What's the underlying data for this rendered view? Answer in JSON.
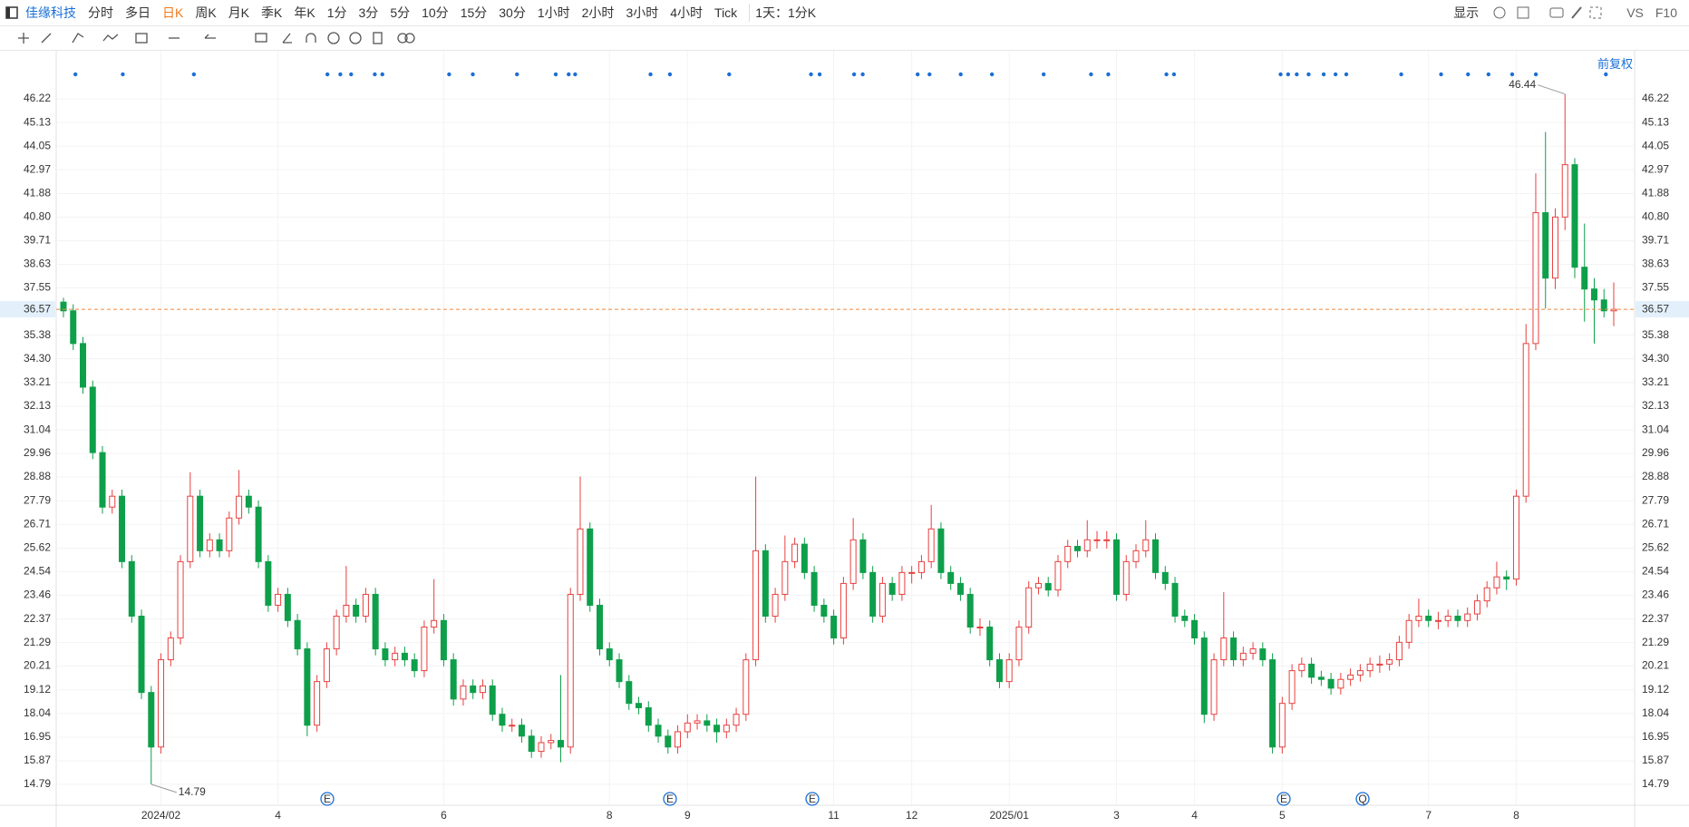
{
  "toolbar": {
    "stock": "佳缘科技",
    "periods": [
      "分时",
      "多日",
      "日K",
      "周K",
      "月K",
      "季K",
      "年K",
      "1分",
      "3分",
      "5分",
      "10分",
      "15分",
      "30分",
      "1小时",
      "2小时",
      "3小时",
      "4小时",
      "Tick"
    ],
    "active_period": "日K",
    "interval": "1天：1分K",
    "display": "显示",
    "vs": "VS",
    "f10": "F10",
    "adjust": "前复权"
  },
  "chart_data": {
    "type": "candlestick",
    "categories": [
      null,
      null,
      null,
      null,
      null,
      null,
      null,
      null,
      null,
      null,
      "2024/02",
      null,
      null,
      null,
      null,
      null,
      null,
      null,
      null,
      null,
      null,
      null,
      "4",
      null,
      null,
      null,
      null,
      null,
      null,
      null,
      null,
      null,
      null,
      null,
      null,
      null,
      null,
      null,
      null,
      "6",
      null,
      null,
      null,
      null,
      null,
      null,
      null,
      null,
      null,
      null,
      null,
      null,
      null,
      null,
      null,
      null,
      "8",
      null,
      null,
      null,
      null,
      null,
      null,
      null,
      "9",
      null,
      null,
      null,
      null,
      null,
      null,
      null,
      null,
      null,
      null,
      null,
      null,
      null,
      null,
      "11",
      null,
      null,
      null,
      null,
      null,
      null,
      null,
      "12",
      null,
      null,
      null,
      null,
      null,
      null,
      null,
      null,
      null,
      "2025/01",
      null,
      null,
      null,
      null,
      null,
      null,
      null,
      null,
      null,
      null,
      "3",
      null,
      null,
      null,
      null,
      null,
      null,
      null,
      "4",
      null,
      null,
      null,
      null,
      null,
      null,
      null,
      null,
      "5",
      null,
      null,
      null,
      null,
      null,
      null,
      null,
      null,
      null,
      null,
      null,
      null,
      null,
      null,
      "7",
      null,
      null,
      null,
      null,
      null,
      null,
      null,
      null,
      "8",
      null,
      null,
      null,
      null,
      null,
      null,
      null,
      null,
      null,
      null
    ],
    "open": [
      36.9,
      36.5,
      35.0,
      33.0,
      30.0,
      27.5,
      28.0,
      25.0,
      22.5,
      19.0,
      16.5,
      20.5,
      21.5,
      25.0,
      28.0,
      25.5,
      26.0,
      25.5,
      27.0,
      28.0,
      27.5,
      25.0,
      23.0,
      23.5,
      22.3,
      21.0,
      17.5,
      19.5,
      21.0,
      22.5,
      23.0,
      22.5,
      23.5,
      21.0,
      20.5,
      20.8,
      20.5,
      20.0,
      22.0,
      22.3,
      20.5,
      18.7,
      19.3,
      19.0,
      19.3,
      18.0,
      17.5,
      17.5,
      17.0,
      16.3,
      16.7,
      16.8,
      16.5,
      23.5,
      26.5,
      23.0,
      21.0,
      20.5,
      19.5,
      18.5,
      18.3,
      17.5,
      17.0,
      16.5,
      17.2,
      17.6,
      17.7,
      17.5,
      17.2,
      17.5,
      18.0,
      20.5,
      25.5,
      22.5,
      23.5,
      25.0,
      25.8,
      24.5,
      23.0,
      22.5,
      21.5,
      24.0,
      26.0,
      24.5,
      22.5,
      24.0,
      23.5,
      24.5,
      24.5,
      25.0,
      26.5,
      24.5,
      24.0,
      23.5,
      22.0,
      22.0,
      20.5,
      19.5,
      20.5,
      22.0,
      23.8,
      24.0,
      23.7,
      25.0,
      25.7,
      25.5,
      26.0,
      26.0,
      26.0,
      23.5,
      25.0,
      25.5,
      26.0,
      24.5,
      24.0,
      22.5,
      22.3,
      21.5,
      18.0,
      20.5,
      21.5,
      20.5,
      20.8,
      21.0,
      20.5,
      16.5,
      18.5,
      20.0,
      20.3,
      19.7,
      19.6,
      19.2,
      19.6,
      19.8,
      20.0,
      20.3,
      20.3,
      20.5,
      21.3,
      22.3,
      22.5,
      22.3,
      22.3,
      22.5,
      22.3,
      22.6,
      23.2,
      23.8,
      24.3,
      24.2,
      28.0,
      35.0,
      41.0,
      38.0,
      40.8,
      43.2,
      38.5,
      37.5,
      37.0,
      36.5
    ],
    "high": [
      37.1,
      36.8,
      35.3,
      33.3,
      30.3,
      28.3,
      28.3,
      25.3,
      22.8,
      19.3,
      20.8,
      21.8,
      25.3,
      29.1,
      28.3,
      26.3,
      26.3,
      27.3,
      29.2,
      28.3,
      27.8,
      25.3,
      23.8,
      23.8,
      22.6,
      21.3,
      19.8,
      21.3,
      22.8,
      24.8,
      23.3,
      23.8,
      23.8,
      21.3,
      21.1,
      21.1,
      20.8,
      22.3,
      24.2,
      22.6,
      20.8,
      19.6,
      19.6,
      19.6,
      19.6,
      18.3,
      17.8,
      17.8,
      17.3,
      17.0,
      17.1,
      19.8,
      23.8,
      28.9,
      26.8,
      23.3,
      21.3,
      20.8,
      19.8,
      18.8,
      18.6,
      17.8,
      17.3,
      17.5,
      18.0,
      18.0,
      18.0,
      17.8,
      17.8,
      18.3,
      20.8,
      28.9,
      25.8,
      23.8,
      26.2,
      26.1,
      26.1,
      24.8,
      23.3,
      22.8,
      24.3,
      27.0,
      26.3,
      24.8,
      24.3,
      24.3,
      24.8,
      24.8,
      25.3,
      27.6,
      26.8,
      24.8,
      24.3,
      23.8,
      22.4,
      22.3,
      20.8,
      20.8,
      22.3,
      24.1,
      24.3,
      24.3,
      25.3,
      26.0,
      26.0,
      26.9,
      26.4,
      26.4,
      26.3,
      25.3,
      25.8,
      26.9,
      26.3,
      24.8,
      24.3,
      22.8,
      22.6,
      21.8,
      20.8,
      23.6,
      21.8,
      21.1,
      21.3,
      21.3,
      20.8,
      18.8,
      20.3,
      20.6,
      20.6,
      20.0,
      19.9,
      19.9,
      20.1,
      20.3,
      20.6,
      20.7,
      20.8,
      21.6,
      22.6,
      23.3,
      22.8,
      22.7,
      22.8,
      22.8,
      22.9,
      23.5,
      24.1,
      25.0,
      24.6,
      28.3,
      35.9,
      42.8,
      44.7,
      41.2,
      46.44,
      43.5,
      40.5,
      38.0,
      37.5,
      37.8
    ],
    "low": [
      36.2,
      34.7,
      32.7,
      29.7,
      27.2,
      27.2,
      24.7,
      22.2,
      18.7,
      14.79,
      16.2,
      20.2,
      21.2,
      24.7,
      25.2,
      25.2,
      25.2,
      25.2,
      26.7,
      27.2,
      24.7,
      22.7,
      22.7,
      22.0,
      20.7,
      17.0,
      17.2,
      19.2,
      20.7,
      22.2,
      22.2,
      22.2,
      20.7,
      20.2,
      20.2,
      20.2,
      19.7,
      19.7,
      21.7,
      20.2,
      18.4,
      18.4,
      18.7,
      18.7,
      17.7,
      17.2,
      17.2,
      16.7,
      16.0,
      16.0,
      16.4,
      15.8,
      16.2,
      23.2,
      22.7,
      20.7,
      20.2,
      19.2,
      18.2,
      18.0,
      17.2,
      16.7,
      16.2,
      16.2,
      16.9,
      17.3,
      17.2,
      16.7,
      16.9,
      17.2,
      17.7,
      20.2,
      22.2,
      22.2,
      23.2,
      24.7,
      24.2,
      22.7,
      22.2,
      21.2,
      21.2,
      23.7,
      24.2,
      22.2,
      22.2,
      23.2,
      23.2,
      24.0,
      24.2,
      24.7,
      24.2,
      23.7,
      23.2,
      21.7,
      21.6,
      20.2,
      19.2,
      19.2,
      20.2,
      21.7,
      23.5,
      23.4,
      23.4,
      24.7,
      25.2,
      25.2,
      25.6,
      25.6,
      23.2,
      23.2,
      24.7,
      25.2,
      24.2,
      23.7,
      22.2,
      22.0,
      21.2,
      17.6,
      17.7,
      20.2,
      20.2,
      20.2,
      20.5,
      20.2,
      16.2,
      16.2,
      18.2,
      19.7,
      19.4,
      19.3,
      18.9,
      18.9,
      19.3,
      19.5,
      19.7,
      19.9,
      20.0,
      20.2,
      21.0,
      22.0,
      22.0,
      21.9,
      22.0,
      22.0,
      22.0,
      22.3,
      22.9,
      23.5,
      23.7,
      23.9,
      27.7,
      34.7,
      36.6,
      37.5,
      40.2,
      38.0,
      36.0,
      35.0,
      36.2,
      35.8
    ],
    "close": [
      36.5,
      35.0,
      33.0,
      30.0,
      27.5,
      28.0,
      25.0,
      22.5,
      19.0,
      16.5,
      20.5,
      21.5,
      25.0,
      28.0,
      25.5,
      26.0,
      25.5,
      27.0,
      28.0,
      27.5,
      25.0,
      23.0,
      23.5,
      22.3,
      21.0,
      17.5,
      19.5,
      21.0,
      22.5,
      23.0,
      22.5,
      23.5,
      21.0,
      20.5,
      20.8,
      20.5,
      20.0,
      22.0,
      22.3,
      20.5,
      18.7,
      19.3,
      19.0,
      19.3,
      18.0,
      17.5,
      17.5,
      17.0,
      16.3,
      16.7,
      16.8,
      16.5,
      23.5,
      26.5,
      23.0,
      21.0,
      20.5,
      19.5,
      18.5,
      18.3,
      17.5,
      17.0,
      16.5,
      17.2,
      17.6,
      17.7,
      17.5,
      17.2,
      17.5,
      18.0,
      20.5,
      25.5,
      22.5,
      23.5,
      25.0,
      25.8,
      24.5,
      23.0,
      22.5,
      21.5,
      24.0,
      26.0,
      24.5,
      22.5,
      24.0,
      23.5,
      24.5,
      24.5,
      25.0,
      26.5,
      24.5,
      24.0,
      23.5,
      22.0,
      22.0,
      20.5,
      19.5,
      20.5,
      22.0,
      23.8,
      24.0,
      23.7,
      25.0,
      25.7,
      25.5,
      26.0,
      26.0,
      26.0,
      23.5,
      25.0,
      25.5,
      26.0,
      24.5,
      24.0,
      22.5,
      22.3,
      21.5,
      18.0,
      20.5,
      21.5,
      20.5,
      20.8,
      21.0,
      20.5,
      16.5,
      18.5,
      20.0,
      20.3,
      19.7,
      19.6,
      19.2,
      19.6,
      19.8,
      20.0,
      20.3,
      20.3,
      20.5,
      21.3,
      22.3,
      22.5,
      22.3,
      22.3,
      22.5,
      22.3,
      22.6,
      23.2,
      23.8,
      24.3,
      24.2,
      28.0,
      35.0,
      41.0,
      38.0,
      40.8,
      43.2,
      38.5,
      37.5,
      37.0,
      36.5,
      36.57
    ],
    "up_color": "#e8403f",
    "down_color": "#0e9f4a",
    "last_price": 36.57,
    "last_price_color": "#f0883a",
    "ylim": [
      13.83,
      47.8
    ],
    "yticks": [
      46.22,
      45.13,
      44.05,
      42.97,
      41.88,
      {
        "value": 40.8,
        "label": "40.80"
      },
      39.71,
      38.63,
      37.55,
      35.38,
      {
        "value": 34.3,
        "label": "34.30"
      },
      33.21,
      32.13,
      31.04,
      29.96,
      28.88,
      27.79,
      26.71,
      25.62,
      24.54,
      23.46,
      22.37,
      21.29,
      20.21,
      19.12,
      18.04,
      16.95,
      15.87,
      14.79
    ],
    "grid": true,
    "events": [
      "E",
      "E",
      "E",
      "E",
      "Q"
    ]
  }
}
